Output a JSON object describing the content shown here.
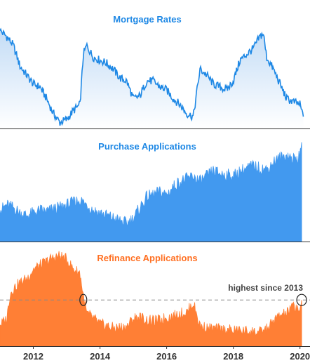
{
  "chart_data": [
    {
      "type": "area",
      "title": "Mortgage Rates",
      "xlim": [
        2011.0,
        2020.3
      ],
      "color": "#1e88e5",
      "x": [
        2011.0,
        2011.2,
        2011.4,
        2011.6,
        2011.8,
        2012.0,
        2012.2,
        2012.4,
        2012.6,
        2012.8,
        2013.0,
        2013.2,
        2013.4,
        2013.5,
        2013.6,
        2013.8,
        2014.0,
        2014.2,
        2014.4,
        2014.6,
        2014.8,
        2015.0,
        2015.2,
        2015.4,
        2015.6,
        2015.8,
        2016.0,
        2016.2,
        2016.4,
        2016.6,
        2016.8,
        2016.9,
        2017.0,
        2017.2,
        2017.4,
        2017.6,
        2017.8,
        2018.0,
        2018.2,
        2018.4,
        2018.6,
        2018.8,
        2018.9,
        2019.0,
        2019.2,
        2019.4,
        2019.6,
        2019.8,
        2020.0,
        2020.1
      ],
      "values": [
        4.95,
        4.85,
        4.7,
        4.35,
        4.2,
        4.05,
        4.0,
        3.8,
        3.55,
        3.4,
        3.45,
        3.6,
        3.7,
        4.55,
        4.7,
        4.5,
        4.45,
        4.4,
        4.3,
        4.15,
        4.1,
        3.8,
        3.85,
        4.1,
        4.1,
        4.0,
        3.95,
        3.8,
        3.7,
        3.55,
        3.5,
        3.9,
        4.3,
        4.2,
        4.05,
        4.0,
        3.95,
        4.1,
        4.45,
        4.55,
        4.65,
        4.85,
        4.9,
        4.5,
        4.3,
        4.05,
        3.8,
        3.75,
        3.7,
        3.5
      ],
      "ylim": [
        3.3,
        5.3
      ]
    },
    {
      "type": "area",
      "title": "Purchase Applications",
      "xlim": [
        2011.0,
        2020.3
      ],
      "color": "#4299ef",
      "x": [
        2011.0,
        2011.2,
        2011.4,
        2011.6,
        2011.8,
        2012.0,
        2012.2,
        2012.4,
        2012.6,
        2012.8,
        2013.0,
        2013.2,
        2013.4,
        2013.6,
        2013.8,
        2014.0,
        2014.2,
        2014.4,
        2014.6,
        2014.8,
        2015.0,
        2015.2,
        2015.4,
        2015.6,
        2015.8,
        2016.0,
        2016.2,
        2016.4,
        2016.6,
        2016.8,
        2017.0,
        2017.2,
        2017.4,
        2017.6,
        2017.8,
        2018.0,
        2018.2,
        2018.4,
        2018.6,
        2018.8,
        2019.0,
        2019.2,
        2019.4,
        2019.6,
        2019.8,
        2020.0,
        2020.05
      ],
      "values": [
        170,
        180,
        175,
        165,
        160,
        165,
        170,
        168,
        172,
        175,
        180,
        185,
        190,
        180,
        170,
        165,
        160,
        155,
        150,
        145,
        155,
        175,
        195,
        200,
        205,
        200,
        215,
        225,
        230,
        235,
        225,
        235,
        245,
        240,
        238,
        235,
        245,
        250,
        255,
        250,
        248,
        262,
        270,
        275,
        268,
        272,
        300
      ],
      "ylim": [
        110,
        310
      ]
    },
    {
      "type": "area",
      "title": "Refinance Applications",
      "xlim": [
        2011.0,
        2020.3
      ],
      "color": "#ff7f35",
      "x": [
        2011.0,
        2011.2,
        2011.3,
        2011.4,
        2011.6,
        2011.8,
        2012.0,
        2012.2,
        2012.4,
        2012.6,
        2012.8,
        2013.0,
        2013.2,
        2013.4,
        2013.5,
        2013.6,
        2013.8,
        2014.0,
        2014.2,
        2014.4,
        2014.6,
        2014.8,
        2015.0,
        2015.2,
        2015.4,
        2015.6,
        2015.8,
        2016.0,
        2016.2,
        2016.4,
        2016.6,
        2016.8,
        2017.0,
        2017.2,
        2017.4,
        2017.6,
        2017.8,
        2018.0,
        2018.2,
        2018.4,
        2018.6,
        2018.8,
        2019.0,
        2019.2,
        2019.4,
        2019.6,
        2019.8,
        2020.0,
        2020.05
      ],
      "values": [
        1100,
        1400,
        2700,
        3000,
        3300,
        3500,
        4000,
        4200,
        4400,
        4600,
        4700,
        4500,
        4000,
        3800,
        2600,
        1700,
        1450,
        1150,
        1050,
        950,
        980,
        1000,
        1450,
        1500,
        1350,
        1300,
        1350,
        1500,
        1550,
        1700,
        1750,
        2250,
        1050,
        950,
        900,
        880,
        850,
        820,
        800,
        780,
        760,
        720,
        900,
        1300,
        1600,
        1700,
        2100,
        1900,
        2400
      ],
      "ylim": [
        0,
        5000
      ],
      "annotations": [
        {
          "text": "highest since 2013",
          "reference_y": 2400,
          "markers": [
            2013.5,
            2020.05
          ]
        }
      ],
      "xticks": [
        2012,
        2014,
        2016,
        2018,
        2020
      ],
      "xticklabels": [
        "2012",
        "2014",
        "2016",
        "2018",
        "2020"
      ]
    }
  ]
}
